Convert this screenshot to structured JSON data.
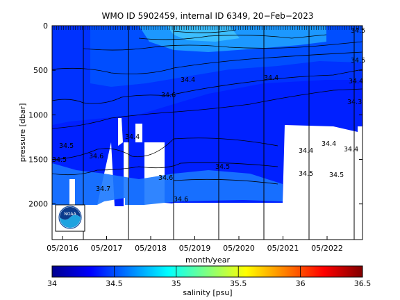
{
  "chart_data": {
    "type": "heatmap",
    "title": "WMO ID 5902459, internal ID 6349, 20−Feb−2023",
    "xlabel": "month/year",
    "ylabel": "pressure [dbar]",
    "colorbar_label": "salinity [psu]",
    "x_ticks": [
      "05/2016",
      "05/2017",
      "05/2018",
      "05/2019",
      "05/2020",
      "05/2021",
      "05/2022"
    ],
    "y_ticks": [
      "0",
      "500",
      "1000",
      "1500",
      "2000"
    ],
    "y_tick_values": [
      0,
      500,
      1000,
      1500,
      2000
    ],
    "ylim": [
      2400,
      0
    ],
    "colorbar_ticks": [
      "34",
      "34.5",
      "35",
      "35.5",
      "36",
      "36.5"
    ],
    "colorbar_range": [
      34,
      36.5
    ],
    "colormap": [
      "#00008f",
      "#0000ff",
      "#0080ff",
      "#00ffff",
      "#80ff80",
      "#ffff00",
      "#ff8000",
      "#ff0000",
      "#800000"
    ],
    "grid": false,
    "salinity_layers": [
      {
        "salinity": 34.2,
        "color": "#0020ff"
      },
      {
        "salinity": 34.32,
        "color": "#0034ff"
      },
      {
        "salinity": 34.42,
        "color": "#0050ff"
      },
      {
        "salinity": 34.55,
        "color": "#1e9cff"
      },
      {
        "salinity": 34.6,
        "color": "#3ec0ff"
      }
    ],
    "contour_labels": [
      "34.4",
      "34.4",
      "34.4",
      "34.4",
      "34.4",
      "34.5",
      "34.5",
      "34.5",
      "34.5",
      "34.5",
      "34.5",
      "34.6",
      "34.6",
      "34.6",
      "34.7",
      "34.5",
      "34.3",
      "34.6",
      "34.4",
      "34.4"
    ],
    "logo_text": "NOAA"
  }
}
